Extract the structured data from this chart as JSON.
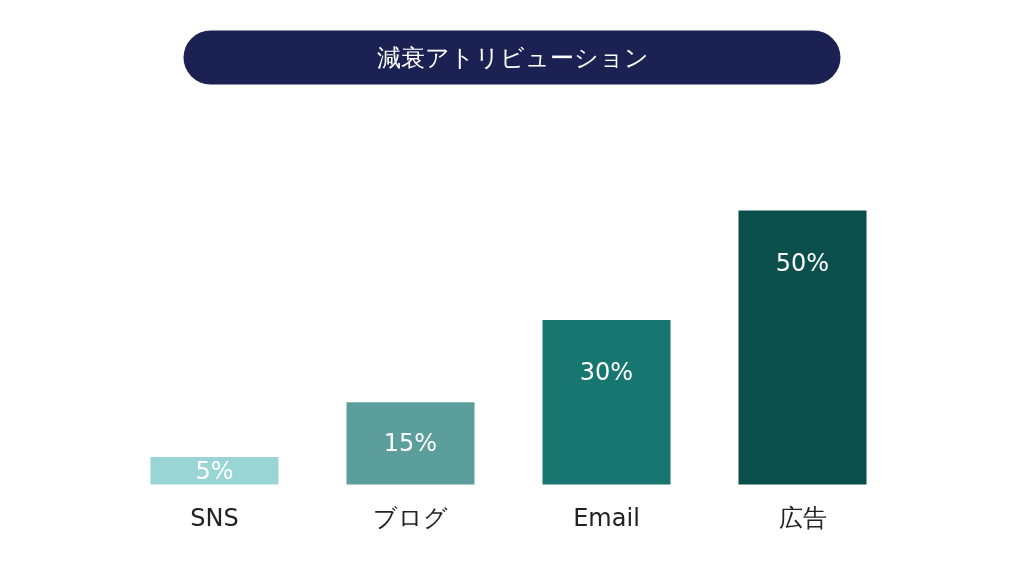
{
  "chart_data": {
    "type": "bar",
    "title": "減衰アトリビューション",
    "categories": [
      "SNS",
      "ブログ",
      "Email",
      "広告"
    ],
    "values": [
      5,
      15,
      30,
      50
    ],
    "colors": [
      "#9ad5d5",
      "#5b9e9b",
      "#17766f",
      "#0a4f4c"
    ],
    "value_labels": [
      "5%",
      "15%",
      "30%",
      "50%"
    ],
    "grid": false
  }
}
